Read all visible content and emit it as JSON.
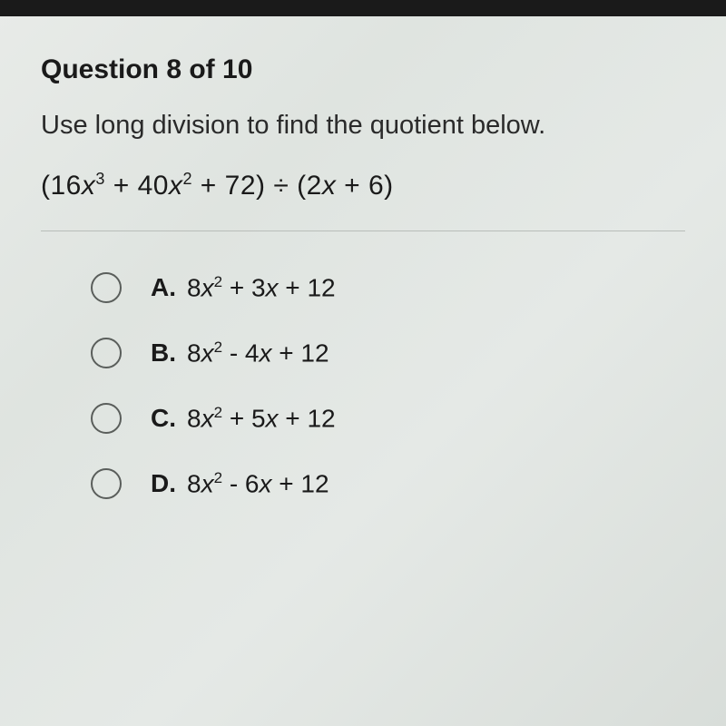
{
  "header": "Question 8 of 10",
  "prompt": "Use long division to find the quotient below.",
  "expression_parts": {
    "open": "(16",
    "x3": "x",
    "exp3": "3",
    "p1": " + 40",
    "x2": "x",
    "exp2": "2",
    "p2": " + 72) ÷ (2",
    "xv": "x",
    "close": " + 6)"
  },
  "options": [
    {
      "letter": "A.",
      "coef": "8",
      "var1": "x",
      "exp": "2",
      "mid": " + 3",
      "var2": "x",
      "tail": " + 12"
    },
    {
      "letter": "B.",
      "coef": "8",
      "var1": "x",
      "exp": "2",
      "mid": " - 4",
      "var2": "x",
      "tail": " + 12"
    },
    {
      "letter": "C.",
      "coef": "8",
      "var1": "x",
      "exp": "2",
      "mid": " + 5",
      "var2": "x",
      "tail": " + 12"
    },
    {
      "letter": "D.",
      "coef": "8",
      "var1": "x",
      "exp": "2",
      "mid": " - 6",
      "var2": "x",
      "tail": " + 12"
    }
  ],
  "styling": {
    "background_colors": [
      "#e8ebe8",
      "#dfe4e0",
      "#e5e9e6",
      "#d8ddd9"
    ],
    "top_bar_color": "#1a1a1a",
    "header_fontsize": 30,
    "prompt_fontsize": 29,
    "expression_fontsize": 30,
    "option_fontsize": 28,
    "radio_border_color": "#5a5e5b",
    "radio_size": 34,
    "divider_color": "#b8bdb9",
    "text_color": "#1a1a1a"
  }
}
